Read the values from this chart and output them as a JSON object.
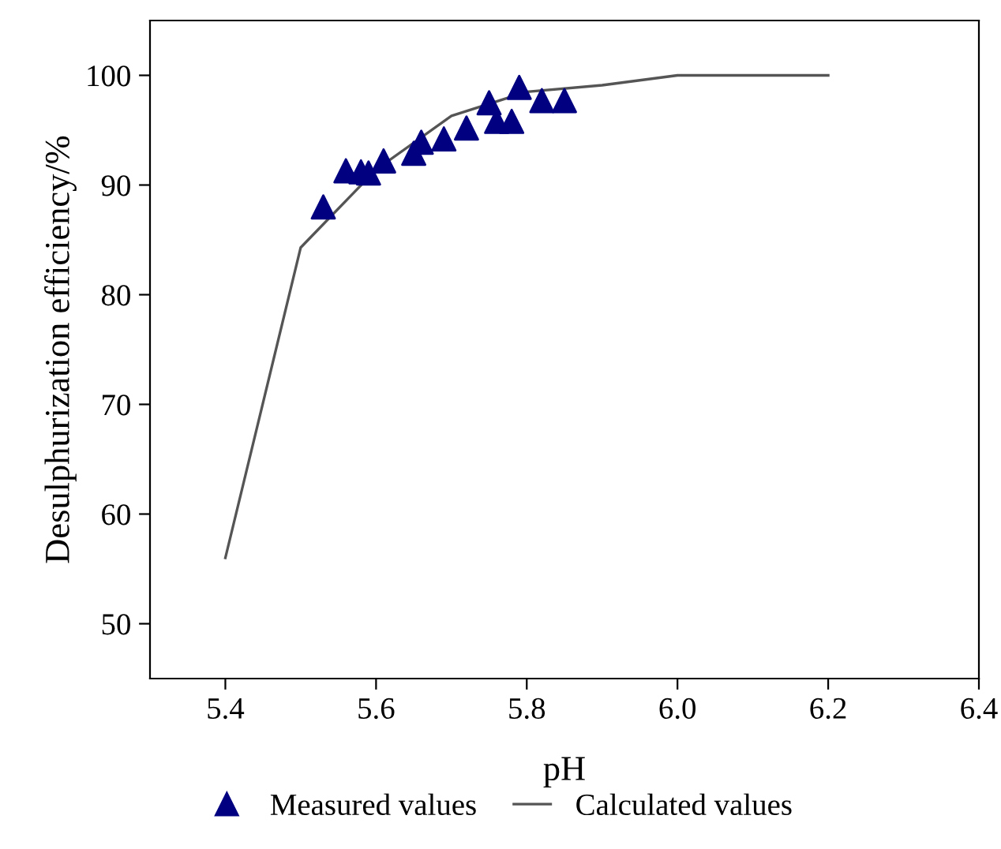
{
  "chart_data": {
    "type": "scatter",
    "xlabel": "pH",
    "ylabel": "Desulphurization efficiency/%",
    "xlim": [
      5.3,
      6.4
    ],
    "xticks": [
      {
        "value": 5.4,
        "label": "5.4"
      },
      {
        "value": 5.6,
        "label": "5.6"
      },
      {
        "value": 5.8,
        "label": "5.8"
      },
      {
        "value": 6.0,
        "label": "6.0"
      },
      {
        "value": 6.2,
        "label": "6.2"
      },
      {
        "value": 6.4,
        "label": "6.4"
      }
    ],
    "ylim": [
      45,
      105
    ],
    "yticks": [
      50,
      60,
      70,
      80,
      90,
      100
    ],
    "grid": false,
    "legend": "bottom",
    "series": [
      {
        "name": "Measured values",
        "marker": "triangle",
        "color": "#000080",
        "x": [
          5.53,
          5.56,
          5.58,
          5.59,
          5.61,
          5.65,
          5.66,
          5.69,
          5.72,
          5.75,
          5.76,
          5.78,
          5.79,
          5.82,
          5.85
        ],
        "values": [
          88.0,
          91.3,
          91.2,
          91.1,
          92.2,
          92.9,
          93.9,
          94.2,
          95.2,
          97.5,
          95.8,
          95.8,
          98.9,
          97.7,
          97.7
        ]
      },
      {
        "name": "Calculated values",
        "type": "line",
        "marker": "none",
        "line_style": "solid",
        "color": "#555555",
        "x": [
          5.4,
          5.5,
          5.6,
          5.7,
          5.8,
          5.9,
          6.0,
          6.2
        ],
        "values": [
          56.0,
          84.3,
          91.4,
          96.3,
          98.5,
          99.1,
          100.0,
          100.0
        ]
      }
    ]
  }
}
